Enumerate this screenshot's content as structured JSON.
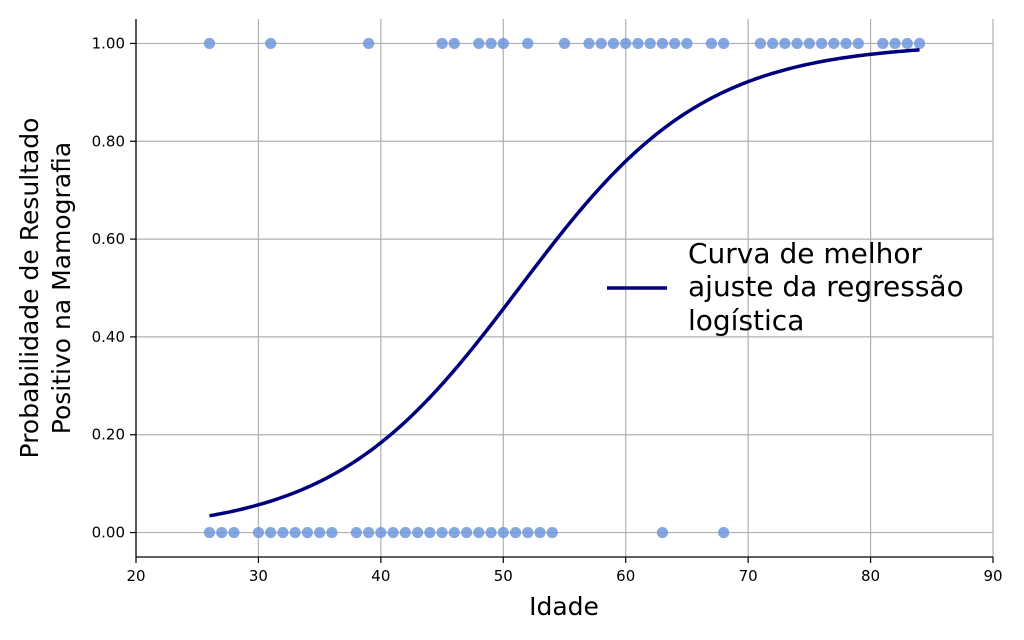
{
  "chart_data": {
    "type": "scatter",
    "xlabel": "Idade",
    "ylabel_lines": [
      "Probabilidade de Resultado",
      "Positivo na Mamografia"
    ],
    "xlim": [
      20,
      90
    ],
    "ylim": [
      -0.05,
      1.05
    ],
    "x_ticks": [
      20,
      30,
      40,
      50,
      60,
      70,
      80,
      90
    ],
    "y_ticks": [
      0.0,
      0.2,
      0.4,
      0.6,
      0.8,
      1.0
    ],
    "y_tick_format_decimals": 2,
    "grid": true,
    "legend_position": "center-right",
    "legend_lines": [
      "Curva de melhor",
      "ajuste da regressão",
      "logística"
    ],
    "series": [
      {
        "kind": "scatter",
        "color": "#6f96dc",
        "points_y1": [
          26,
          31,
          39,
          45,
          46,
          48,
          49,
          50,
          52,
          55,
          57,
          58,
          59,
          60,
          61,
          62,
          63,
          64,
          65,
          67,
          68,
          71,
          72,
          73,
          74,
          75,
          76,
          77,
          78,
          79,
          81,
          82,
          83,
          84
        ],
        "points_y0": [
          26,
          27,
          28,
          30,
          31,
          32,
          33,
          34,
          35,
          36,
          38,
          39,
          40,
          41,
          42,
          43,
          44,
          45,
          46,
          47,
          48,
          49,
          50,
          51,
          52,
          53,
          54,
          63,
          68
        ]
      },
      {
        "kind": "line",
        "name": "Curva de melhor ajuste da regressão logística",
        "color": "#00007f",
        "x_range": [
          26,
          84
        ],
        "logistic_midpoint": 51.3,
        "logistic_slope": 0.132
      }
    ]
  }
}
